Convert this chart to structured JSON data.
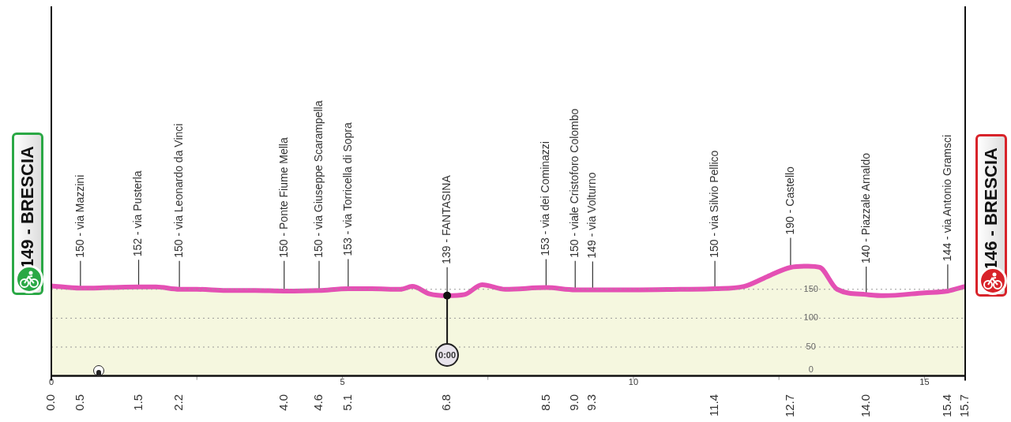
{
  "chart_data": {
    "type": "area",
    "x": [
      0,
      0.5,
      1.0,
      1.5,
      1.8,
      2.2,
      2.5,
      3.0,
      3.5,
      4.0,
      4.6,
      5.1,
      5.5,
      6.0,
      6.2,
      6.5,
      6.8,
      7.1,
      7.4,
      7.8,
      8.5,
      9.0,
      9.3,
      10.0,
      10.8,
      11.4,
      11.9,
      12.3,
      12.7,
      13.0,
      13.2,
      13.5,
      14.0,
      14.3,
      15.0,
      15.4,
      15.7
    ],
    "series": [
      {
        "color": "#e450b4",
        "values": [
          156,
          152,
          153,
          154,
          154,
          150,
          150,
          148,
          148,
          147,
          148,
          151,
          151,
          150,
          155,
          142,
          139,
          141,
          158,
          150,
          153,
          149,
          149,
          149,
          150,
          151,
          155,
          172,
          188,
          190,
          188,
          150,
          141,
          139,
          144,
          147,
          155
        ]
      }
    ],
    "xlim": [
      0,
      15.7
    ],
    "xticks": [
      0,
      {
        "value": 2.5,
        "label": null
      },
      5,
      {
        "value": 7.5,
        "label": null
      },
      10,
      {
        "value": 12.5,
        "label": null
      },
      15
    ],
    "x2ticks": [
      {
        "value": 0,
        "label": "0.0"
      },
      {
        "value": 0.5,
        "label": "0.5"
      },
      {
        "value": 1.5,
        "label": "1.5"
      },
      {
        "value": 2.2,
        "label": "2.2"
      },
      {
        "value": 4.0,
        "label": "4.0"
      },
      {
        "value": 4.6,
        "label": "4.6"
      },
      {
        "value": 5.1,
        "label": "5.1"
      },
      {
        "value": 6.8,
        "label": "6.8"
      },
      {
        "value": 8.5,
        "label": "8.5"
      },
      {
        "value": 9.0,
        "label": "9.0"
      },
      {
        "value": 9.3,
        "label": "9.3"
      },
      {
        "value": 11.4,
        "label": "11.4"
      },
      {
        "value": 12.7,
        "label": "12.7"
      },
      {
        "value": 14.0,
        "label": "14.0"
      },
      {
        "value": 15.4,
        "label": "15.4"
      },
      {
        "value": 15.7,
        "label": "15.7"
      }
    ],
    "x2lim": [
      0,
      15.7
    ],
    "ylim": [
      0,
      640
    ],
    "yticks": [
      0,
      50,
      100,
      150
    ],
    "grid": "y",
    "annotations": [
      {
        "text": "149 - BRESCIA",
        "x": 0,
        "y": 149
      },
      {
        "text": "150 - via Mazzini",
        "x": 0.5,
        "y": 150
      },
      {
        "text": "152 - via Pusterla",
        "x": 1.5,
        "y": 152
      },
      {
        "text": "150 - via Leonardo da Vinci",
        "x": 2.2,
        "y": 150
      },
      {
        "text": "150 - Ponte Fiume Mella",
        "x": 4.0,
        "y": 150
      },
      {
        "text": "150 - via Giuseppe Scarampella",
        "x": 4.6,
        "y": 150
      },
      {
        "text": "153 - via Torricella di Sopra",
        "x": 5.1,
        "y": 153
      },
      {
        "text": "139 - FANTASINA",
        "x": 6.8,
        "y": 139
      },
      {
        "text": "0:00",
        "x": 6.8
      },
      {
        "text": "153 - via dei Cominazzi",
        "x": 8.5,
        "y": 153
      },
      {
        "text": "150 - viale Cristoforo Colombo",
        "x": 9.0,
        "y": 150
      },
      {
        "text": "149 - via Volturno",
        "x": 9.3,
        "y": 149
      },
      {
        "text": "150 - via Silvio Pellico",
        "x": 11.4,
        "y": 150
      },
      {
        "text": "190 - Castello",
        "x": 12.7,
        "y": 190
      },
      {
        "text": "140 - Piazzale Arnaldo",
        "x": 14.0,
        "y": 140
      },
      {
        "text": "144 - via Antonio Gramsci",
        "x": 15.4,
        "y": 144
      },
      {
        "text": "146 - BRESCIA",
        "x": 15.7,
        "y": 146
      }
    ]
  }
}
